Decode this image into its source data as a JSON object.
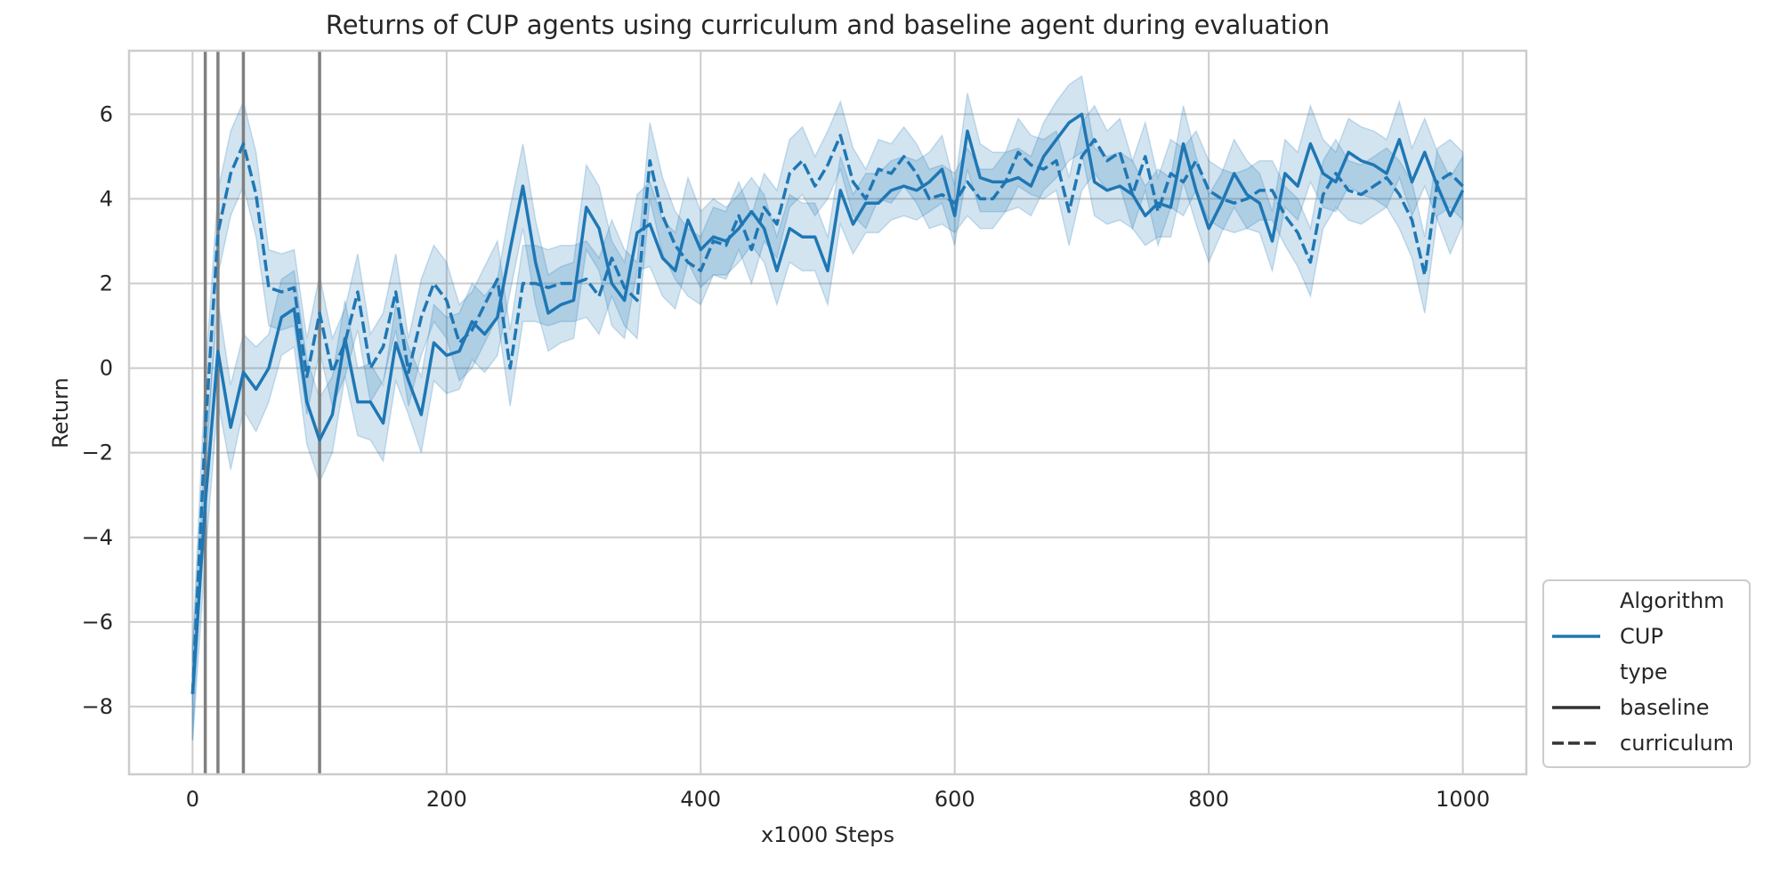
{
  "chart_data": {
    "type": "line",
    "title": "Returns of CUP agents using curriculum and baseline agent during evaluation",
    "xlabel": "x1000 Steps",
    "ylabel": "Return",
    "xlim": [
      -50,
      1050
    ],
    "ylim": [
      -9.6,
      7.5
    ],
    "xticks": [
      0,
      200,
      400,
      600,
      800,
      1000
    ],
    "yticks": [
      -8,
      -6,
      -4,
      -2,
      0,
      2,
      4,
      6
    ],
    "grid": true,
    "color": "#1f77b4",
    "band_color": "#1f77b4",
    "vlines": [
      10,
      20,
      40,
      100
    ],
    "vline_color": "#808080",
    "legend": {
      "placement": "bottom-right outside",
      "entries": [
        {
          "label": "Algorithm",
          "style": "header"
        },
        {
          "label": "CUP",
          "style": "color"
        },
        {
          "label": "type",
          "style": "header"
        },
        {
          "label": "baseline",
          "style": "solid"
        },
        {
          "label": "curriculum",
          "style": "dashed"
        }
      ]
    },
    "x": [
      0,
      10,
      20,
      30,
      40,
      50,
      60,
      70,
      80,
      90,
      100,
      110,
      120,
      130,
      140,
      150,
      160,
      170,
      180,
      190,
      200,
      210,
      220,
      230,
      240,
      250,
      260,
      270,
      280,
      290,
      300,
      310,
      320,
      330,
      340,
      350,
      360,
      370,
      380,
      390,
      400,
      410,
      420,
      430,
      440,
      450,
      460,
      470,
      480,
      490,
      500,
      510,
      520,
      530,
      540,
      550,
      560,
      570,
      580,
      590,
      600,
      610,
      620,
      630,
      640,
      650,
      660,
      670,
      680,
      690,
      700,
      710,
      720,
      730,
      740,
      750,
      760,
      770,
      780,
      790,
      800,
      810,
      820,
      830,
      840,
      850,
      860,
      870,
      880,
      890,
      900,
      910,
      920,
      930,
      940,
      950,
      960,
      970,
      980,
      990,
      1000
    ],
    "series": [
      {
        "name": "baseline",
        "dash": "solid",
        "values": [
          -7.7,
          -3.2,
          0.4,
          -1.4,
          -0.1,
          -0.5,
          0.0,
          1.2,
          1.4,
          -0.8,
          -1.7,
          -1.1,
          0.7,
          -0.8,
          -0.8,
          -1.3,
          0.6,
          -0.3,
          -1.1,
          0.6,
          0.3,
          0.4,
          1.1,
          0.8,
          1.2,
          2.8,
          4.3,
          2.5,
          1.3,
          1.5,
          1.6,
          3.8,
          3.3,
          2.0,
          1.6,
          3.2,
          3.4,
          2.6,
          2.3,
          3.5,
          2.8,
          3.1,
          3.0,
          3.3,
          3.7,
          3.3,
          2.3,
          3.3,
          3.1,
          3.1,
          2.3,
          4.2,
          3.4,
          3.9,
          3.9,
          4.2,
          4.3,
          4.2,
          4.4,
          4.7,
          3.6,
          5.6,
          4.5,
          4.4,
          4.4,
          4.5,
          4.3,
          5.0,
          5.4,
          5.8,
          6.0,
          4.4,
          4.2,
          4.3,
          4.1,
          3.6,
          3.9,
          3.8,
          5.3,
          4.2,
          3.3,
          3.9,
          4.6,
          4.1,
          3.9,
          3.0,
          4.6,
          4.3,
          5.3,
          4.6,
          4.4,
          5.1,
          4.9,
          4.8,
          4.6,
          5.4,
          4.4,
          5.1,
          4.3,
          3.6,
          4.2
        ],
        "lower": [
          -8.8,
          -4.5,
          -0.8,
          -2.4,
          -1.0,
          -1.5,
          -0.8,
          0.3,
          0.5,
          -1.8,
          -2.7,
          -2.0,
          -0.2,
          -1.6,
          -1.7,
          -2.2,
          -0.3,
          -1.1,
          -2.0,
          -0.3,
          -0.6,
          -0.5,
          0.2,
          -0.1,
          0.3,
          1.8,
          3.3,
          1.5,
          0.4,
          0.6,
          0.7,
          2.8,
          2.3,
          1.0,
          0.7,
          2.3,
          2.4,
          1.7,
          1.4,
          2.5,
          1.9,
          2.2,
          2.2,
          2.5,
          2.9,
          2.5,
          1.5,
          2.5,
          2.3,
          2.3,
          1.5,
          3.4,
          2.7,
          3.2,
          3.2,
          3.5,
          3.6,
          3.5,
          3.7,
          3.9,
          2.9,
          4.7,
          3.7,
          3.7,
          3.7,
          3.8,
          3.6,
          4.2,
          4.5,
          4.9,
          5.1,
          3.6,
          3.4,
          3.5,
          3.3,
          2.9,
          3.1,
          3.1,
          4.4,
          3.4,
          2.5,
          3.2,
          3.8,
          3.3,
          3.2,
          2.3,
          3.8,
          3.5,
          4.4,
          3.8,
          3.7,
          4.3,
          4.1,
          4.0,
          3.8,
          4.5,
          3.6,
          4.3,
          3.5,
          2.7,
          3.4
        ],
        "upper": [
          -6.6,
          -1.9,
          1.6,
          -0.4,
          0.8,
          0.5,
          0.8,
          2.1,
          2.3,
          0.2,
          -0.7,
          -0.2,
          1.6,
          0.0,
          0.1,
          -0.4,
          1.5,
          0.5,
          -0.2,
          1.5,
          1.2,
          1.3,
          2.0,
          1.7,
          2.1,
          3.8,
          5.3,
          3.5,
          2.2,
          2.4,
          2.5,
          4.8,
          4.3,
          3.0,
          2.5,
          4.1,
          4.4,
          3.5,
          3.2,
          4.5,
          3.7,
          4.0,
          3.8,
          4.1,
          4.5,
          4.1,
          3.1,
          4.1,
          3.9,
          3.9,
          3.1,
          5.0,
          4.1,
          4.6,
          4.6,
          4.9,
          5.0,
          4.9,
          5.1,
          5.5,
          4.3,
          6.5,
          5.3,
          5.1,
          5.1,
          5.2,
          5.0,
          5.8,
          6.3,
          6.7,
          6.9,
          5.2,
          5.0,
          5.1,
          4.9,
          4.3,
          4.7,
          4.5,
          6.2,
          5.0,
          4.1,
          4.6,
          5.4,
          4.9,
          4.6,
          3.7,
          5.4,
          5.1,
          6.2,
          5.4,
          5.1,
          5.9,
          5.7,
          5.6,
          5.4,
          6.3,
          5.2,
          5.9,
          5.1,
          4.5,
          5.0
        ]
      },
      {
        "name": "curriculum",
        "dash": "dashed",
        "values": [
          -7.7,
          -1.5,
          3.2,
          4.6,
          5.3,
          4.1,
          1.9,
          1.8,
          1.9,
          -0.2,
          1.3,
          -0.1,
          0.6,
          1.8,
          0.0,
          0.5,
          1.8,
          -0.1,
          1.2,
          2.0,
          1.6,
          0.6,
          0.9,
          1.5,
          2.1,
          0.0,
          2.0,
          2.0,
          1.9,
          2.0,
          2.0,
          2.1,
          1.7,
          2.6,
          1.9,
          1.6,
          4.9,
          3.6,
          2.9,
          2.5,
          2.3,
          3.0,
          2.9,
          3.6,
          2.8,
          3.8,
          3.4,
          4.6,
          4.9,
          4.3,
          4.8,
          5.5,
          4.4,
          4.0,
          4.7,
          4.6,
          5.0,
          4.6,
          4.0,
          4.1,
          3.9,
          4.4,
          4.0,
          4.0,
          4.4,
          5.1,
          4.8,
          4.7,
          4.9,
          3.7,
          5.0,
          5.4,
          4.9,
          5.1,
          4.1,
          5.0,
          3.7,
          4.6,
          4.4,
          4.9,
          4.2,
          4.0,
          3.9,
          4.0,
          4.2,
          4.2,
          3.6,
          3.2,
          2.5,
          4.1,
          4.6,
          4.2,
          4.1,
          4.3,
          4.5,
          4.1,
          3.5,
          2.2,
          4.4,
          4.6,
          4.3
        ],
        "lower": [
          -8.8,
          -2.8,
          2.2,
          3.6,
          4.3,
          3.1,
          1.0,
          0.9,
          1.0,
          -1.1,
          0.4,
          -0.9,
          -0.2,
          0.9,
          -0.8,
          -0.3,
          0.9,
          -0.9,
          0.3,
          1.1,
          0.7,
          -0.3,
          0.0,
          0.6,
          1.2,
          -0.9,
          1.1,
          1.1,
          1.0,
          1.1,
          1.1,
          1.2,
          0.8,
          1.7,
          1.0,
          0.7,
          4.0,
          2.7,
          2.1,
          1.7,
          1.5,
          2.2,
          2.1,
          2.8,
          2.0,
          3.0,
          2.6,
          3.8,
          4.1,
          3.6,
          4.0,
          4.7,
          3.6,
          3.3,
          4.0,
          3.9,
          4.3,
          3.9,
          3.3,
          3.4,
          3.2,
          3.6,
          3.3,
          3.3,
          3.7,
          4.3,
          4.1,
          4.0,
          4.2,
          2.9,
          4.2,
          4.6,
          4.2,
          4.3,
          3.3,
          4.2,
          2.9,
          3.8,
          3.6,
          4.2,
          3.5,
          3.3,
          3.2,
          3.3,
          3.5,
          3.5,
          2.9,
          2.4,
          1.7,
          3.3,
          3.8,
          3.5,
          3.4,
          3.6,
          3.8,
          3.3,
          2.6,
          1.3,
          3.6,
          3.8,
          3.5
        ],
        "upper": [
          -6.6,
          -0.2,
          4.2,
          5.6,
          6.3,
          5.1,
          2.8,
          2.7,
          2.8,
          0.7,
          2.2,
          0.7,
          1.4,
          2.7,
          0.8,
          1.3,
          2.7,
          0.7,
          2.1,
          2.9,
          2.5,
          1.5,
          1.8,
          2.4,
          3.0,
          0.9,
          2.9,
          2.9,
          2.8,
          2.9,
          2.9,
          3.0,
          2.6,
          3.5,
          2.8,
          2.5,
          5.8,
          4.5,
          3.7,
          3.3,
          3.1,
          3.8,
          3.7,
          4.4,
          3.6,
          4.6,
          4.2,
          5.4,
          5.7,
          5.0,
          5.6,
          6.3,
          5.2,
          4.7,
          5.4,
          5.3,
          5.7,
          5.3,
          4.7,
          4.8,
          4.6,
          5.2,
          4.7,
          4.7,
          5.1,
          5.9,
          5.5,
          5.4,
          5.6,
          4.5,
          5.8,
          6.2,
          5.6,
          5.9,
          4.9,
          5.8,
          4.5,
          5.4,
          5.2,
          5.6,
          4.9,
          4.7,
          4.6,
          4.7,
          4.9,
          4.9,
          4.3,
          4.0,
          3.3,
          4.9,
          5.4,
          4.9,
          4.8,
          5.0,
          5.2,
          4.9,
          4.4,
          3.1,
          5.2,
          5.4,
          5.1
        ]
      }
    ]
  }
}
